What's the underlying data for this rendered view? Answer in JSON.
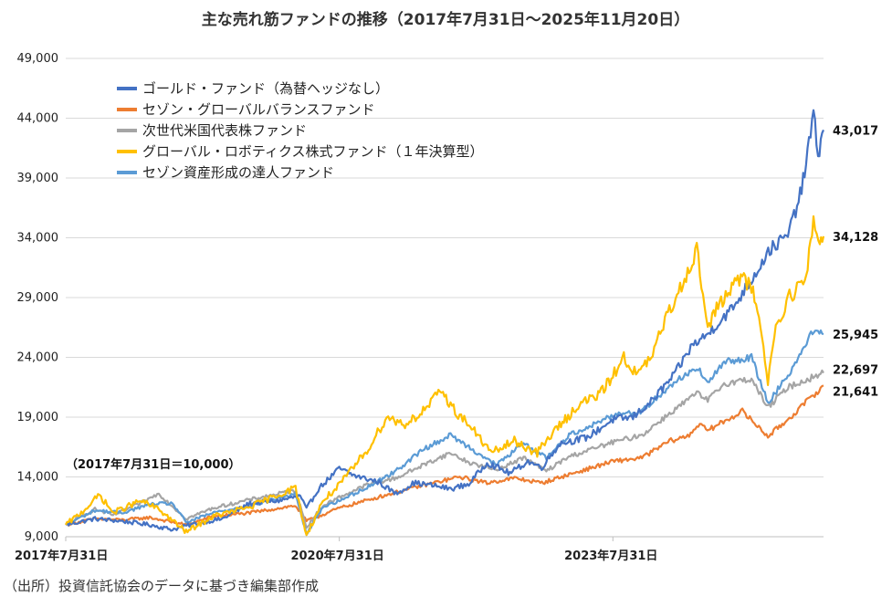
{
  "chart_data": {
    "type": "line",
    "title": "主な売れ筋ファンドの推移（2017年7月31日〜2025年11月20日）",
    "base_note": "（2017年7月31日＝10,000）",
    "source": "（出所）投資信託協会のデータに基づき編集部作成",
    "ylim": [
      9000,
      49000
    ],
    "yticks": [
      "9,000",
      "14,000",
      "19,000",
      "24,000",
      "29,000",
      "34,000",
      "39,000",
      "44,000",
      "49,000"
    ],
    "ytick_values": [
      9000,
      14000,
      19000,
      24000,
      29000,
      34000,
      39000,
      44000,
      49000
    ],
    "xlim": [
      2017.58,
      2025.89
    ],
    "xticks": [
      "2017年7月31日",
      "2020年7月31日",
      "2023年7月31日"
    ],
    "xtick_values": [
      2017.58,
      2020.58,
      2023.58
    ],
    "legend_position": "top-left",
    "series": [
      {
        "name": "ゴールド・ファンド（為替ヘッジなし）",
        "color": "#4472C4",
        "end_label": "43,017",
        "end_value": 43017,
        "points": [
          [
            2017.58,
            10000
          ],
          [
            2017.9,
            10500
          ],
          [
            2018.2,
            10300
          ],
          [
            2018.5,
            10000
          ],
          [
            2018.75,
            9600
          ],
          [
            2019.0,
            10100
          ],
          [
            2019.3,
            10500
          ],
          [
            2019.6,
            11800
          ],
          [
            2019.9,
            12000
          ],
          [
            2020.15,
            12400
          ],
          [
            2020.22,
            11300
          ],
          [
            2020.35,
            13000
          ],
          [
            2020.58,
            14700
          ],
          [
            2020.75,
            14100
          ],
          [
            2021.0,
            13600
          ],
          [
            2021.2,
            12600
          ],
          [
            2021.4,
            13500
          ],
          [
            2021.6,
            13300
          ],
          [
            2021.8,
            13000
          ],
          [
            2022.0,
            13400
          ],
          [
            2022.2,
            15200
          ],
          [
            2022.45,
            14300
          ],
          [
            2022.65,
            15300
          ],
          [
            2022.8,
            14800
          ],
          [
            2023.0,
            16800
          ],
          [
            2023.3,
            17300
          ],
          [
            2023.58,
            18800
          ],
          [
            2023.8,
            19000
          ],
          [
            2024.0,
            20300
          ],
          [
            2024.25,
            22500
          ],
          [
            2024.45,
            25000
          ],
          [
            2024.6,
            25800
          ],
          [
            2024.75,
            27000
          ],
          [
            2024.9,
            28200
          ],
          [
            2025.1,
            30500
          ],
          [
            2025.3,
            33000
          ],
          [
            2025.5,
            34200
          ],
          [
            2025.65,
            38000
          ],
          [
            2025.78,
            44300
          ],
          [
            2025.83,
            41000
          ],
          [
            2025.89,
            43017
          ]
        ]
      },
      {
        "name": "セゾン・グローバルバランスファンド",
        "color": "#ED7D31",
        "end_label": "21,641",
        "end_value": 21641,
        "points": [
          [
            2017.58,
            10000
          ],
          [
            2017.9,
            10500
          ],
          [
            2018.2,
            10400
          ],
          [
            2018.5,
            10600
          ],
          [
            2018.9,
            10000
          ],
          [
            2019.2,
            10700
          ],
          [
            2019.6,
            11000
          ],
          [
            2020.1,
            11600
          ],
          [
            2020.22,
            10300
          ],
          [
            2020.58,
            11400
          ],
          [
            2021.0,
            12300
          ],
          [
            2021.5,
            13300
          ],
          [
            2021.9,
            14000
          ],
          [
            2022.2,
            13500
          ],
          [
            2022.5,
            13900
          ],
          [
            2022.8,
            13500
          ],
          [
            2023.1,
            14200
          ],
          [
            2023.58,
            15300
          ],
          [
            2023.9,
            15600
          ],
          [
            2024.2,
            17000
          ],
          [
            2024.4,
            17400
          ],
          [
            2024.55,
            18600
          ],
          [
            2024.6,
            17800
          ],
          [
            2025.0,
            19500
          ],
          [
            2025.28,
            17400
          ],
          [
            2025.5,
            18800
          ],
          [
            2025.89,
            21641
          ]
        ]
      },
      {
        "name": "次世代米国代表株ファンド",
        "color": "#A5A5A5",
        "end_label": "22,697",
        "end_value": 22697,
        "points": [
          [
            2017.58,
            10000
          ],
          [
            2017.9,
            11300
          ],
          [
            2018.1,
            10800
          ],
          [
            2018.4,
            11800
          ],
          [
            2018.6,
            12600
          ],
          [
            2018.9,
            10500
          ],
          [
            2019.2,
            11400
          ],
          [
            2019.6,
            12100
          ],
          [
            2020.1,
            12900
          ],
          [
            2020.22,
            9800
          ],
          [
            2020.4,
            11600
          ],
          [
            2020.58,
            12300
          ],
          [
            2020.9,
            13400
          ],
          [
            2021.2,
            13900
          ],
          [
            2021.5,
            15000
          ],
          [
            2021.8,
            16000
          ],
          [
            2022.0,
            15200
          ],
          [
            2022.3,
            14600
          ],
          [
            2022.6,
            15600
          ],
          [
            2022.85,
            14500
          ],
          [
            2023.1,
            15700
          ],
          [
            2023.58,
            16900
          ],
          [
            2023.9,
            17500
          ],
          [
            2024.2,
            19300
          ],
          [
            2024.5,
            21000
          ],
          [
            2024.62,
            20400
          ],
          [
            2024.8,
            21800
          ],
          [
            2025.1,
            22200
          ],
          [
            2025.28,
            19800
          ],
          [
            2025.5,
            21500
          ],
          [
            2025.89,
            22697
          ]
        ]
      },
      {
        "name": "グローバル・ロボティクス株式ファンド（１年決算型）",
        "color": "#FFC000",
        "end_label": "34,128",
        "end_value": 34128,
        "points": [
          [
            2017.58,
            10000
          ],
          [
            2017.75,
            11000
          ],
          [
            2017.95,
            12500
          ],
          [
            2018.1,
            11000
          ],
          [
            2018.4,
            12000
          ],
          [
            2018.6,
            11300
          ],
          [
            2018.9,
            9400
          ],
          [
            2019.2,
            10700
          ],
          [
            2019.6,
            11500
          ],
          [
            2020.1,
            13100
          ],
          [
            2020.22,
            9100
          ],
          [
            2020.4,
            12000
          ],
          [
            2020.58,
            13300
          ],
          [
            2020.9,
            16400
          ],
          [
            2021.1,
            19000
          ],
          [
            2021.3,
            18400
          ],
          [
            2021.5,
            19500
          ],
          [
            2021.7,
            21200
          ],
          [
            2021.85,
            19500
          ],
          [
            2022.0,
            18400
          ],
          [
            2022.25,
            16000
          ],
          [
            2022.5,
            17000
          ],
          [
            2022.75,
            16000
          ],
          [
            2022.9,
            17500
          ],
          [
            2023.2,
            20000
          ],
          [
            2023.45,
            21000
          ],
          [
            2023.58,
            22500
          ],
          [
            2023.7,
            24000
          ],
          [
            2023.85,
            22500
          ],
          [
            2024.0,
            24000
          ],
          [
            2024.15,
            27000
          ],
          [
            2024.3,
            29500
          ],
          [
            2024.5,
            33000
          ],
          [
            2024.62,
            26500
          ],
          [
            2024.75,
            28500
          ],
          [
            2024.85,
            29500
          ],
          [
            2025.0,
            30800
          ],
          [
            2025.15,
            29000
          ],
          [
            2025.28,
            22000
          ],
          [
            2025.35,
            26000
          ],
          [
            2025.5,
            29000
          ],
          [
            2025.7,
            30500
          ],
          [
            2025.78,
            35500
          ],
          [
            2025.85,
            33500
          ],
          [
            2025.89,
            34128
          ]
        ]
      },
      {
        "name": "セゾン資産形成の達人ファンド",
        "color": "#5B9BD5",
        "end_label": "25,945",
        "end_value": 25945,
        "points": [
          [
            2017.58,
            10000
          ],
          [
            2017.9,
            11200
          ],
          [
            2018.2,
            11000
          ],
          [
            2018.5,
            11700
          ],
          [
            2018.75,
            11800
          ],
          [
            2018.9,
            10200
          ],
          [
            2019.2,
            11000
          ],
          [
            2019.6,
            11600
          ],
          [
            2020.1,
            12600
          ],
          [
            2020.22,
            9200
          ],
          [
            2020.4,
            11500
          ],
          [
            2020.58,
            12000
          ],
          [
            2020.9,
            13200
          ],
          [
            2021.2,
            14500
          ],
          [
            2021.5,
            16300
          ],
          [
            2021.8,
            17500
          ],
          [
            2022.0,
            16500
          ],
          [
            2022.3,
            15000
          ],
          [
            2022.6,
            16800
          ],
          [
            2022.85,
            15600
          ],
          [
            2023.1,
            17500
          ],
          [
            2023.4,
            18500
          ],
          [
            2023.58,
            19200
          ],
          [
            2023.9,
            19500
          ],
          [
            2024.2,
            21600
          ],
          [
            2024.5,
            23200
          ],
          [
            2024.62,
            21800
          ],
          [
            2024.8,
            23600
          ],
          [
            2025.1,
            24000
          ],
          [
            2025.28,
            20200
          ],
          [
            2025.5,
            22500
          ],
          [
            2025.8,
            26500
          ],
          [
            2025.89,
            25945
          ]
        ]
      }
    ]
  }
}
